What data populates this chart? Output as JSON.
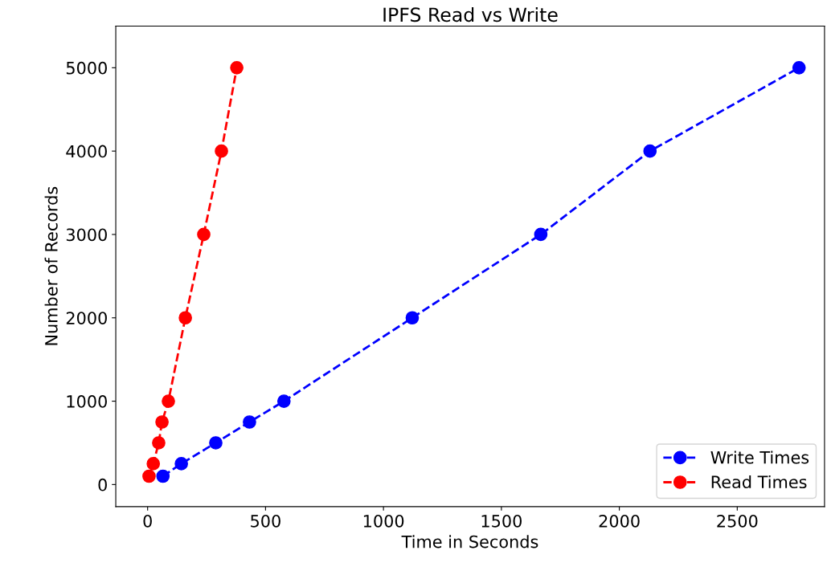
{
  "chart_data": {
    "type": "line",
    "title": "IPFS Read vs Write",
    "xlabel": "Time in Seconds",
    "ylabel": "Number of Records",
    "xlim": [
      -135,
      2870
    ],
    "ylim": [
      -265,
      5500
    ],
    "xticks": [
      0,
      500,
      1000,
      1500,
      2000,
      2500
    ],
    "yticks": [
      0,
      1000,
      2000,
      3000,
      4000,
      5000
    ],
    "marker": "circle",
    "line_style": "dashed",
    "legend": "bottom right",
    "grid": false,
    "series": [
      {
        "name": "Write Times",
        "color": "#0000ff",
        "x": [
          65,
          143,
          289,
          432,
          578,
          1122,
          1667,
          2130,
          2762
        ],
        "values": [
          100,
          250,
          500,
          750,
          1000,
          2000,
          3000,
          4000,
          5000
        ]
      },
      {
        "name": "Read Times",
        "color": "#ff0000",
        "x": [
          6,
          24,
          47,
          61,
          88,
          160,
          238,
          313,
          378
        ],
        "values": [
          100,
          250,
          500,
          750,
          1000,
          2000,
          3000,
          4000,
          5000
        ]
      }
    ]
  }
}
